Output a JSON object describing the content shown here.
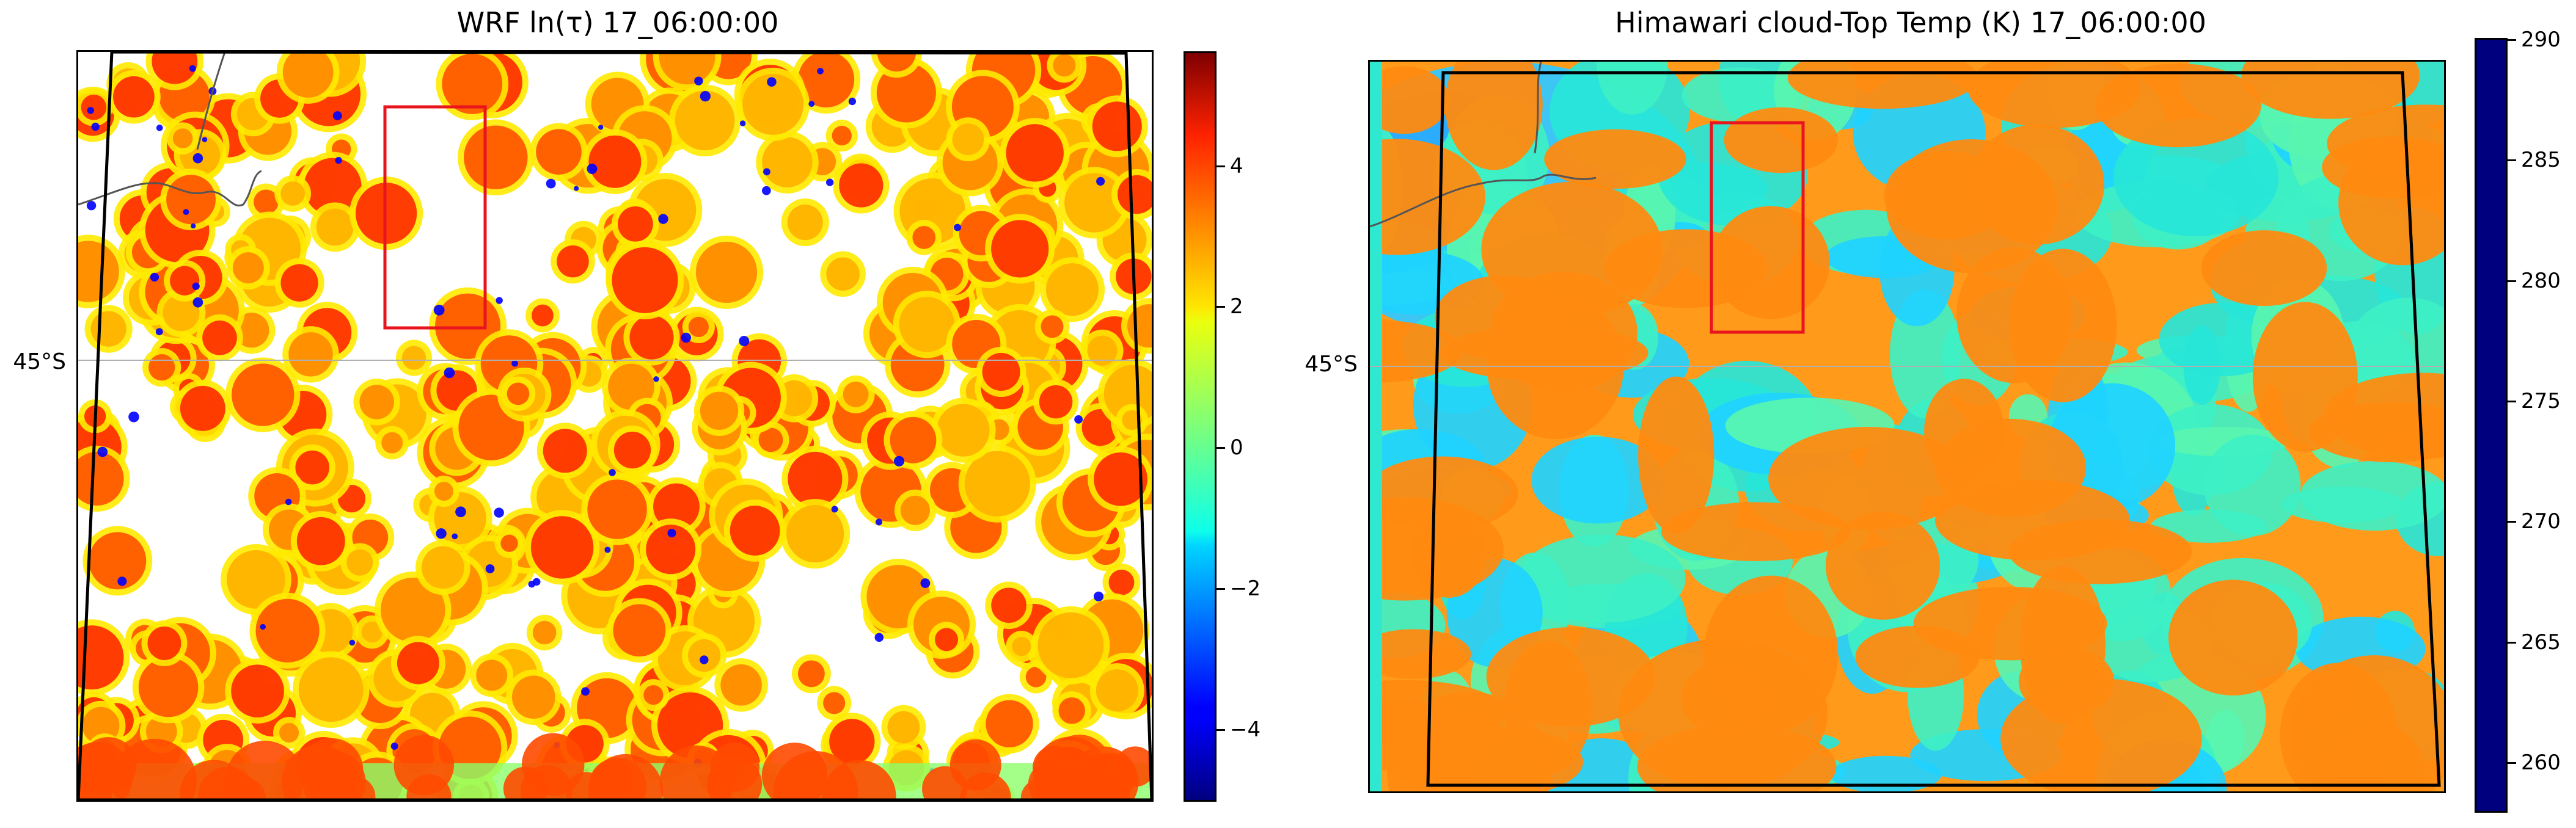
{
  "panels": [
    {
      "title": "WRF ln(τ) 17_06:00:00",
      "lat_label": "45°S",
      "colorbar": {
        "colormap": "jet",
        "min": -5.0,
        "max": 5.6,
        "ticks": [
          {
            "value": 4,
            "label": "4"
          },
          {
            "value": 2,
            "label": "2"
          },
          {
            "value": 0,
            "label": "0"
          },
          {
            "value": -2,
            "label": "−2"
          },
          {
            "value": -4,
            "label": "−4"
          }
        ]
      },
      "field": "optical-depth",
      "background": "#ffffff"
    },
    {
      "title": "Himawari cloud-Top Temp (K) 17_06:00:00",
      "lat_label": "45°S",
      "colorbar": {
        "colormap": "jet-reversed",
        "min": 258,
        "max": 290,
        "ticks": [
          {
            "value": 290,
            "label": "290"
          },
          {
            "value": 285,
            "label": "285"
          },
          {
            "value": 280,
            "label": "280"
          },
          {
            "value": 275,
            "label": "275"
          },
          {
            "value": 270,
            "label": "270"
          },
          {
            "value": 265,
            "label": "265"
          },
          {
            "value": 260,
            "label": "260"
          }
        ]
      },
      "field": "cloud-top-temperature",
      "background": "#ff9a1a"
    }
  ],
  "colors": {
    "domain_outline": "#000000",
    "subregion_box": "#e8141e",
    "coastline": "#555555",
    "gridline": "#b0b0b0"
  }
}
